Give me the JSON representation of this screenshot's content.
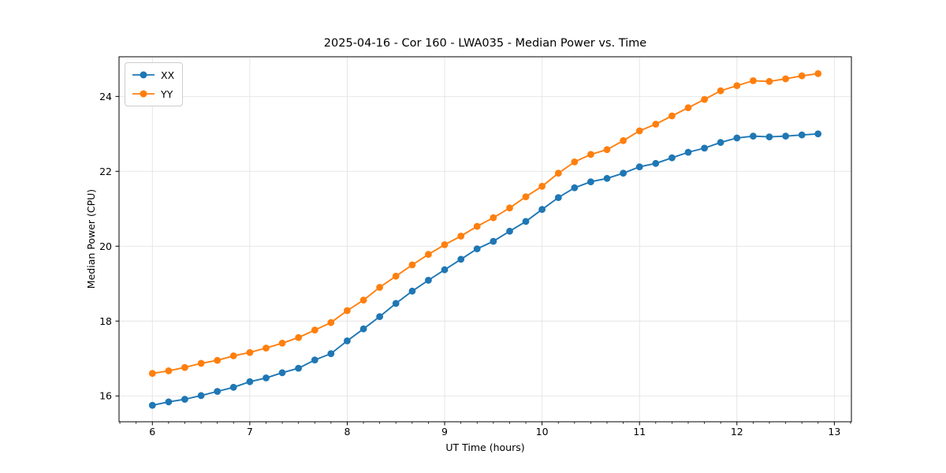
{
  "page": {
    "background": "#ffffff",
    "text_color": "#000000"
  },
  "chart_data": {
    "type": "line",
    "title": "2025-04-16 - Cor 160 - LWA035 - Median Power vs. Time",
    "xlabel": "UT Time (hours)",
    "ylabel": "Median Power (CPU)",
    "xlim": [
      5.658,
      13.175
    ],
    "ylim": [
      15.31,
      25.06
    ],
    "x_ticks": [
      6,
      7,
      8,
      9,
      10,
      11,
      12,
      13
    ],
    "y_ticks": [
      16,
      18,
      20,
      22,
      24
    ],
    "x_minor_tick_step_hours": 0.1667,
    "grid": true,
    "grid_color": "#e3e3e3",
    "legend_position": "upper-left",
    "x": [
      6.0,
      6.167,
      6.333,
      6.5,
      6.667,
      6.833,
      7.0,
      7.167,
      7.333,
      7.5,
      7.667,
      7.833,
      8.0,
      8.167,
      8.333,
      8.5,
      8.667,
      8.833,
      9.0,
      9.167,
      9.333,
      9.5,
      9.667,
      9.833,
      10.0,
      10.167,
      10.333,
      10.5,
      10.667,
      10.833,
      11.0,
      11.167,
      11.333,
      11.5,
      11.667,
      11.833,
      12.0,
      12.167,
      12.333,
      12.5,
      12.667,
      12.833
    ],
    "series": [
      {
        "name": "XX",
        "color": "#1f77b4",
        "marker": "circle",
        "values": [
          15.75,
          15.84,
          15.91,
          16.01,
          16.12,
          16.23,
          16.38,
          16.48,
          16.62,
          16.74,
          16.96,
          17.13,
          17.47,
          17.79,
          18.12,
          18.47,
          18.8,
          19.09,
          19.37,
          19.65,
          19.93,
          20.13,
          20.4,
          20.66,
          20.98,
          21.3,
          21.56,
          21.72,
          21.81,
          21.95,
          22.12,
          22.21,
          22.36,
          22.51,
          22.62,
          22.77,
          22.89,
          22.94,
          22.92,
          22.94,
          22.97,
          23.0
        ]
      },
      {
        "name": "YY",
        "color": "#ff7f0e",
        "marker": "circle",
        "values": [
          16.6,
          16.67,
          16.76,
          16.87,
          16.95,
          17.07,
          17.16,
          17.28,
          17.41,
          17.56,
          17.76,
          17.96,
          18.28,
          18.56,
          18.9,
          19.2,
          19.5,
          19.78,
          20.04,
          20.27,
          20.53,
          20.76,
          21.02,
          21.32,
          21.6,
          21.95,
          22.25,
          22.45,
          22.58,
          22.82,
          23.08,
          23.26,
          23.48,
          23.7,
          23.92,
          24.15,
          24.29,
          24.42,
          24.4,
          24.47,
          24.55,
          24.61
        ]
      }
    ]
  }
}
